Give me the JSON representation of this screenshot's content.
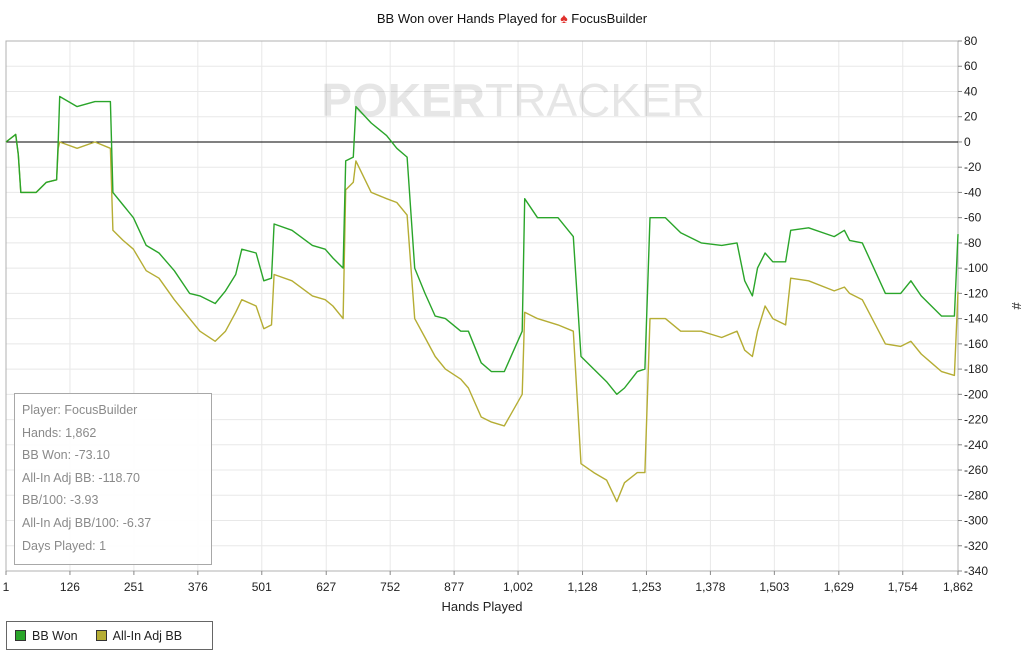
{
  "title": {
    "prefix": "BB Won over Hands Played for",
    "spade": "♠",
    "player": "FocusBuilder"
  },
  "watermark": {
    "part1": "POKER",
    "part2": "TRACKER"
  },
  "stats": [
    "Player: FocusBuilder",
    "Hands: 1,862",
    "BB Won: -73.10",
    "All-In Adj BB: -118.70",
    "BB/100: -3.93",
    "All-In Adj BB/100: -6.37",
    "Days Played: 1"
  ],
  "colors": {
    "bb_won": "#2aa52a",
    "allin_adj": "#b5ad34",
    "grid": "#e8e8e8",
    "zero_line": "#000000"
  },
  "chart_data": {
    "type": "line",
    "title": "BB Won over Hands Played for ♠ FocusBuilder",
    "xlabel": "Hands Played",
    "ylabel": "#",
    "xlim": [
      1,
      1862
    ],
    "ylim": [
      -340,
      80
    ],
    "x_ticks": [
      1,
      126,
      251,
      376,
      501,
      627,
      752,
      877,
      1002,
      1128,
      1253,
      1378,
      1503,
      1629,
      1754,
      1862
    ],
    "x_tick_labels": [
      "1",
      "126",
      "251",
      "376",
      "501",
      "627",
      "752",
      "877",
      "1,002",
      "1,128",
      "1,253",
      "1,378",
      "1,503",
      "1,629",
      "1,754",
      "1,862"
    ],
    "y_ticks": [
      80,
      60,
      40,
      20,
      0,
      -20,
      -40,
      -60,
      -80,
      -100,
      -120,
      -140,
      -160,
      -180,
      -200,
      -220,
      -240,
      -260,
      -280,
      -300,
      -320,
      -340
    ],
    "grid": true,
    "legend_position": "bottom-left",
    "series": [
      {
        "name": "BB Won",
        "color": "#2aa52a",
        "points": [
          [
            1,
            0
          ],
          [
            20,
            6
          ],
          [
            25,
            -10
          ],
          [
            30,
            -40
          ],
          [
            60,
            -40
          ],
          [
            80,
            -32
          ],
          [
            100,
            -30
          ],
          [
            103,
            0
          ],
          [
            106,
            36
          ],
          [
            140,
            28
          ],
          [
            175,
            32
          ],
          [
            205,
            32
          ],
          [
            210,
            -40
          ],
          [
            230,
            -50
          ],
          [
            250,
            -60
          ],
          [
            275,
            -82
          ],
          [
            300,
            -88
          ],
          [
            330,
            -102
          ],
          [
            360,
            -120
          ],
          [
            380,
            -122
          ],
          [
            410,
            -128
          ],
          [
            430,
            -118
          ],
          [
            450,
            -105
          ],
          [
            462,
            -85
          ],
          [
            490,
            -88
          ],
          [
            505,
            -110
          ],
          [
            520,
            -108
          ],
          [
            525,
            -65
          ],
          [
            560,
            -70
          ],
          [
            600,
            -82
          ],
          [
            625,
            -85
          ],
          [
            640,
            -92
          ],
          [
            660,
            -100
          ],
          [
            665,
            -15
          ],
          [
            680,
            -12
          ],
          [
            685,
            28
          ],
          [
            715,
            15
          ],
          [
            745,
            5
          ],
          [
            765,
            -5
          ],
          [
            785,
            -12
          ],
          [
            800,
            -100
          ],
          [
            820,
            -120
          ],
          [
            840,
            -138
          ],
          [
            860,
            -140
          ],
          [
            890,
            -150
          ],
          [
            905,
            -150
          ],
          [
            930,
            -175
          ],
          [
            950,
            -182
          ],
          [
            975,
            -182
          ],
          [
            1010,
            -150
          ],
          [
            1015,
            -45
          ],
          [
            1040,
            -60
          ],
          [
            1080,
            -60
          ],
          [
            1110,
            -75
          ],
          [
            1125,
            -170
          ],
          [
            1150,
            -180
          ],
          [
            1175,
            -190
          ],
          [
            1195,
            -200
          ],
          [
            1210,
            -195
          ],
          [
            1235,
            -182
          ],
          [
            1250,
            -180
          ],
          [
            1260,
            -60
          ],
          [
            1290,
            -60
          ],
          [
            1320,
            -72
          ],
          [
            1360,
            -80
          ],
          [
            1400,
            -82
          ],
          [
            1430,
            -80
          ],
          [
            1445,
            -110
          ],
          [
            1460,
            -122
          ],
          [
            1470,
            -100
          ],
          [
            1485,
            -88
          ],
          [
            1500,
            -95
          ],
          [
            1525,
            -95
          ],
          [
            1535,
            -70
          ],
          [
            1570,
            -68
          ],
          [
            1620,
            -75
          ],
          [
            1640,
            -70
          ],
          [
            1650,
            -78
          ],
          [
            1675,
            -80
          ],
          [
            1720,
            -120
          ],
          [
            1750,
            -120
          ],
          [
            1770,
            -110
          ],
          [
            1790,
            -122
          ],
          [
            1810,
            -130
          ],
          [
            1830,
            -138
          ],
          [
            1855,
            -138
          ],
          [
            1862,
            -73
          ]
        ]
      },
      {
        "name": "All-In Adj BB",
        "color": "#b5ad34",
        "points": [
          [
            1,
            0
          ],
          [
            20,
            6
          ],
          [
            25,
            -10
          ],
          [
            30,
            -40
          ],
          [
            60,
            -40
          ],
          [
            80,
            -32
          ],
          [
            100,
            -30
          ],
          [
            103,
            -5
          ],
          [
            106,
            0
          ],
          [
            140,
            -5
          ],
          [
            175,
            0
          ],
          [
            205,
            -5
          ],
          [
            210,
            -70
          ],
          [
            230,
            -78
          ],
          [
            250,
            -85
          ],
          [
            275,
            -102
          ],
          [
            300,
            -108
          ],
          [
            330,
            -125
          ],
          [
            360,
            -140
          ],
          [
            380,
            -150
          ],
          [
            410,
            -158
          ],
          [
            430,
            -150
          ],
          [
            450,
            -135
          ],
          [
            462,
            -125
          ],
          [
            490,
            -130
          ],
          [
            505,
            -148
          ],
          [
            520,
            -145
          ],
          [
            525,
            -105
          ],
          [
            560,
            -110
          ],
          [
            600,
            -122
          ],
          [
            625,
            -125
          ],
          [
            640,
            -130
          ],
          [
            660,
            -140
          ],
          [
            665,
            -38
          ],
          [
            680,
            -32
          ],
          [
            685,
            -15
          ],
          [
            715,
            -40
          ],
          [
            745,
            -45
          ],
          [
            765,
            -48
          ],
          [
            785,
            -58
          ],
          [
            800,
            -140
          ],
          [
            820,
            -155
          ],
          [
            840,
            -170
          ],
          [
            860,
            -180
          ],
          [
            890,
            -188
          ],
          [
            905,
            -195
          ],
          [
            930,
            -218
          ],
          [
            950,
            -222
          ],
          [
            975,
            -225
          ],
          [
            1010,
            -200
          ],
          [
            1015,
            -135
          ],
          [
            1040,
            -140
          ],
          [
            1080,
            -145
          ],
          [
            1110,
            -150
          ],
          [
            1125,
            -255
          ],
          [
            1150,
            -262
          ],
          [
            1175,
            -268
          ],
          [
            1195,
            -285
          ],
          [
            1210,
            -270
          ],
          [
            1235,
            -262
          ],
          [
            1250,
            -262
          ],
          [
            1260,
            -140
          ],
          [
            1290,
            -140
          ],
          [
            1320,
            -150
          ],
          [
            1360,
            -150
          ],
          [
            1400,
            -155
          ],
          [
            1430,
            -150
          ],
          [
            1445,
            -165
          ],
          [
            1460,
            -170
          ],
          [
            1470,
            -150
          ],
          [
            1485,
            -130
          ],
          [
            1500,
            -140
          ],
          [
            1525,
            -145
          ],
          [
            1535,
            -108
          ],
          [
            1570,
            -110
          ],
          [
            1620,
            -118
          ],
          [
            1640,
            -115
          ],
          [
            1650,
            -120
          ],
          [
            1675,
            -125
          ],
          [
            1720,
            -160
          ],
          [
            1750,
            -162
          ],
          [
            1770,
            -158
          ],
          [
            1790,
            -168
          ],
          [
            1810,
            -175
          ],
          [
            1830,
            -182
          ],
          [
            1855,
            -185
          ],
          [
            1862,
            -118.7
          ]
        ]
      }
    ]
  }
}
